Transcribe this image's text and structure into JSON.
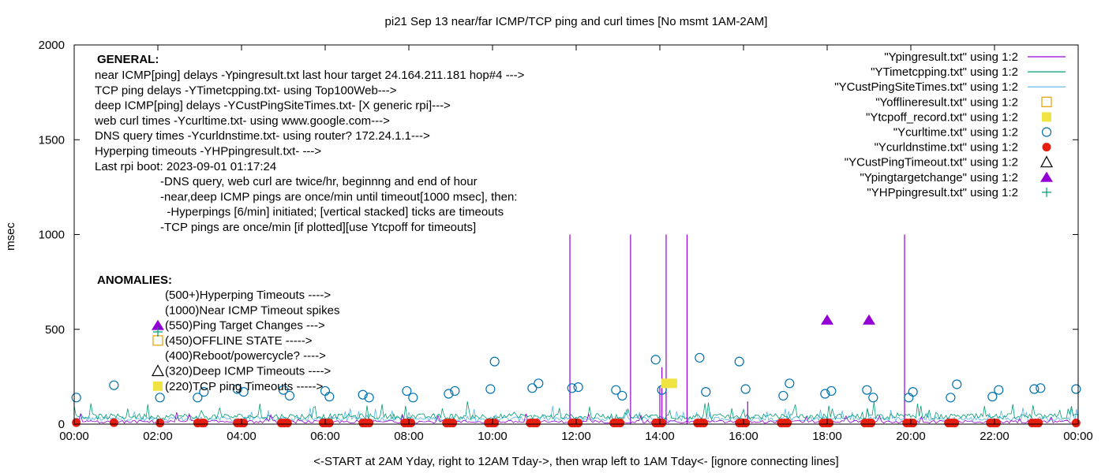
{
  "chart_data": {
    "type": "line",
    "title": "pi21 Sep 13  near/far ICMP/TCP ping and curl times [No msmt 1AM-2AM]",
    "xlabel": "<-START at 2AM Yday, right to 12AM Tday->, then wrap left to 1AM Tday<- [ignore connecting lines]",
    "ylabel": "msec",
    "xlim": [
      0,
      24
    ],
    "ylim": [
      0,
      2000
    ],
    "x_ticks": [
      {
        "v": 0,
        "label": "00:00"
      },
      {
        "v": 2,
        "label": "02:00"
      },
      {
        "v": 4,
        "label": "04:00"
      },
      {
        "v": 6,
        "label": "06:00"
      },
      {
        "v": 8,
        "label": "08:00"
      },
      {
        "v": 10,
        "label": "10:00"
      },
      {
        "v": 12,
        "label": "12:00"
      },
      {
        "v": 14,
        "label": "14:00"
      },
      {
        "v": 16,
        "label": "16:00"
      },
      {
        "v": 18,
        "label": "18:00"
      },
      {
        "v": 20,
        "label": "20:00"
      },
      {
        "v": 22,
        "label": "22:00"
      },
      {
        "v": 24,
        "label": "00:00"
      }
    ],
    "y_ticks": [
      {
        "v": 0,
        "label": "0"
      },
      {
        "v": 500,
        "label": "500"
      },
      {
        "v": 1000,
        "label": "1000"
      },
      {
        "v": 1500,
        "label": "1500"
      },
      {
        "v": 2000,
        "label": "2000"
      }
    ],
    "grid": false,
    "legend_position": "top-right",
    "legend": [
      {
        "label": "\"Ypingresult.txt\" using 1:2",
        "kind": "line",
        "color": "#9400d3"
      },
      {
        "label": "\"YTimetcpping.txt\" using 1:2",
        "kind": "line",
        "color": "#009e73"
      },
      {
        "label": "\"YCustPingSiteTimes.txt\" using 1:2",
        "kind": "line",
        "color": "#56b4e9"
      },
      {
        "label": "\"Yofflineresult.txt\" using 1:2",
        "kind": "open-square",
        "color": "#e69f00"
      },
      {
        "label": "\"Ytcpoff_record.txt\" using 1:2",
        "kind": "filled-square",
        "color": "#f0e442"
      },
      {
        "label": "\"Ycurltime.txt\" using 1:2",
        "kind": "open-circle",
        "color": "#0072b2"
      },
      {
        "label": "\"Ycurldnstime.txt\" using 1:2",
        "kind": "filled-circle",
        "color": "#e51e10"
      },
      {
        "label": "\"YCustPingTimeout.txt\" using 1:2",
        "kind": "open-triangle",
        "color": "#000000"
      },
      {
        "label": "\"Ypingtargetchange\" using 1:2",
        "kind": "filled-triangle",
        "color": "#9400d3"
      },
      {
        "label": "\"YHPpingresult.txt\" using 1:2",
        "kind": "plus",
        "color": "#009e73"
      }
    ],
    "series": [
      {
        "name": "\"Ycurltime.txt\" using 1:2",
        "x": [
          0.05,
          0.95,
          2.05,
          2.95,
          3.1,
          3.9,
          4.05,
          5.0,
          5.15,
          6.0,
          6.1,
          6.9,
          7.05,
          7.95,
          8.1,
          8.95,
          9.1,
          9.95,
          10.05,
          10.95,
          11.1,
          11.9,
          12.05,
          12.95,
          13.1,
          13.9,
          14.05,
          14.95,
          15.1,
          15.9,
          16.05,
          16.95,
          17.1,
          17.95,
          18.1,
          18.95,
          19.1,
          19.95,
          20.05,
          20.95,
          21.1,
          21.95,
          22.1,
          22.95,
          23.1,
          23.95
        ],
        "y": [
          140,
          205,
          140,
          140,
          170,
          185,
          170,
          180,
          150,
          175,
          145,
          155,
          140,
          175,
          140,
          160,
          175,
          185,
          330,
          190,
          215,
          190,
          195,
          180,
          150,
          340,
          180,
          350,
          170,
          330,
          185,
          150,
          215,
          160,
          175,
          180,
          140,
          140,
          170,
          140,
          210,
          145,
          180,
          185,
          190,
          185
        ]
      },
      {
        "name": "\"Ycurldnstime.txt\" using 1:2",
        "x": [
          0.05,
          0.95,
          2.05,
          2.95,
          3.05,
          3.1,
          3.9,
          3.98,
          4.05,
          4.95,
          5.02,
          5.1,
          5.95,
          6.02,
          6.1,
          6.9,
          6.97,
          7.05,
          7.9,
          7.98,
          8.05,
          8.9,
          8.98,
          9.05,
          9.9,
          9.98,
          10.05,
          10.9,
          10.98,
          11.05,
          11.9,
          11.97,
          12.05,
          12.9,
          12.97,
          13.05,
          13.9,
          13.97,
          14.05,
          14.9,
          14.98,
          15.05,
          15.9,
          15.98,
          16.05,
          16.9,
          16.98,
          17.05,
          17.9,
          17.98,
          18.05,
          18.9,
          18.98,
          19.05,
          19.9,
          19.98,
          20.05,
          20.9,
          20.98,
          21.05,
          21.9,
          21.98,
          22.05,
          22.9,
          22.98,
          23.05,
          23.95
        ],
        "y": [
          8,
          8,
          6,
          6,
          6,
          6,
          6,
          6,
          6,
          6,
          6,
          6,
          6,
          6,
          6,
          6,
          6,
          6,
          6,
          6,
          6,
          6,
          6,
          6,
          6,
          6,
          6,
          6,
          6,
          6,
          6,
          6,
          6,
          6,
          6,
          6,
          6,
          6,
          6,
          6,
          6,
          6,
          6,
          6,
          6,
          6,
          6,
          6,
          6,
          6,
          6,
          6,
          6,
          6,
          6,
          6,
          6,
          6,
          6,
          6,
          6,
          6,
          6,
          6,
          6,
          6,
          6
        ]
      },
      {
        "name": "\"Ytcpoff_record.txt\" using 1:2",
        "x": [
          14.15,
          14.3
        ],
        "y": [
          215,
          215
        ]
      },
      {
        "name": "\"Ypingtargetchange\" using 1:2",
        "x": [
          18.0,
          19.0
        ],
        "y": [
          550,
          550
        ]
      }
    ],
    "spikes": {
      "series": "\"Ypingresult.txt\" using 1:2",
      "x": [
        11.85,
        13.3,
        14.0,
        14.05,
        14.15,
        14.65,
        16.1,
        19.85
      ],
      "y": [
        1000,
        1000,
        200,
        300,
        1000,
        1000,
        120,
        1000
      ]
    },
    "annotations": {
      "general_title": "GENERAL:",
      "general_lines": [
        "near ICMP[ping] delays -Ypingresult.txt last hour target 24.164.211.181 hop#4 --->",
        "TCP ping delays -YTimetcpping.txt- using Top100Web--->",
        "deep ICMP[ping] delays -YCustPingSiteTimes.txt- [X generic rpi]--->",
        "web curl times -Ycurltime.txt- using www.google.com--->",
        "DNS query times -Ycurldnstime.txt- using router? 172.24.1.1--->",
        "Hyperping timeouts -YHPpingresult.txt- --->",
        "Last rpi boot: 2023-09-01 01:17:24"
      ],
      "notes": [
        "-DNS query, web curl are twice/hr, beginnng and end of hour",
        "-near,deep ICMP pings are once/min until timeout[1000 msec], then:",
        "  -Hyperpings [6/min] initiated; [vertical stacked] ticks are timeouts",
        "-TCP pings are once/min [if plotted][use Ytcpoff for timeouts]"
      ],
      "anomalies_title": "ANOMALIES:",
      "anomalies": [
        {
          "text": "(500+)Hyperping Timeouts ---->",
          "marker": "none"
        },
        {
          "text": "(1000)Near ICMP Timeout spikes",
          "marker": "none"
        },
        {
          "text": "(550)Ping Target Changes --->",
          "marker": "filled-triangle"
        },
        {
          "text": "(450)OFFLINE STATE ----->",
          "marker": "open-square"
        },
        {
          "text": "(400)Reboot/powercycle? ---->",
          "marker": "none"
        },
        {
          "text": "(320)Deep ICMP Timeouts ---->",
          "marker": "open-triangle"
        },
        {
          "text": "(220)TCP ping Timeouts ----->",
          "marker": "filled-square"
        }
      ]
    }
  }
}
